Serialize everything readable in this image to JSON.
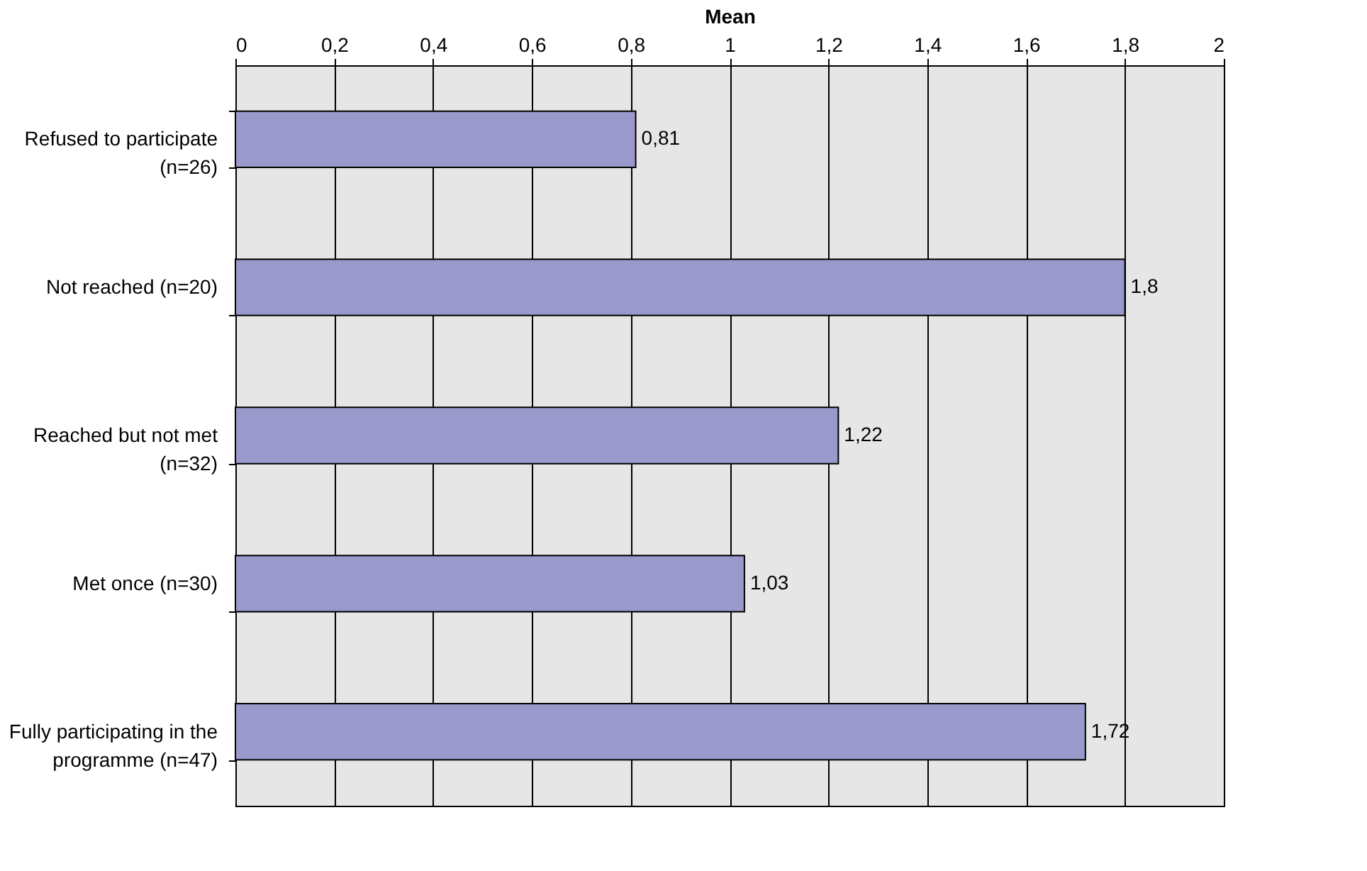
{
  "chart_data": {
    "type": "bar",
    "orientation": "horizontal",
    "xlabel": "Mean",
    "categories": [
      "Refused to participate\n(n=26)",
      "Not reached (n=20)",
      "Reached but not met\n(n=32)",
      "Met once (n=30)",
      "Fully participating in the\nprogramme (n=47)"
    ],
    "values": [
      0.81,
      1.8,
      1.22,
      1.03,
      1.72
    ],
    "value_labels": [
      "0,81",
      "1,8",
      "1,22",
      "1,03",
      "1,72"
    ],
    "color": "#9999cc",
    "xlim": [
      0,
      2
    ],
    "xticks": [
      0,
      {
        "value": 0.2,
        "label": "0,2"
      },
      {
        "value": 0.4,
        "label": "0,4"
      },
      {
        "value": 0.6,
        "label": "0,6"
      },
      {
        "value": 0.8,
        "label": "0,8"
      },
      1,
      {
        "value": 1.2,
        "label": "1,2"
      },
      {
        "value": 1.4,
        "label": "1,4"
      },
      {
        "value": 1.6,
        "label": "1,6"
      },
      {
        "value": 1.8,
        "label": "1,8"
      },
      2
    ],
    "grid": "x"
  }
}
